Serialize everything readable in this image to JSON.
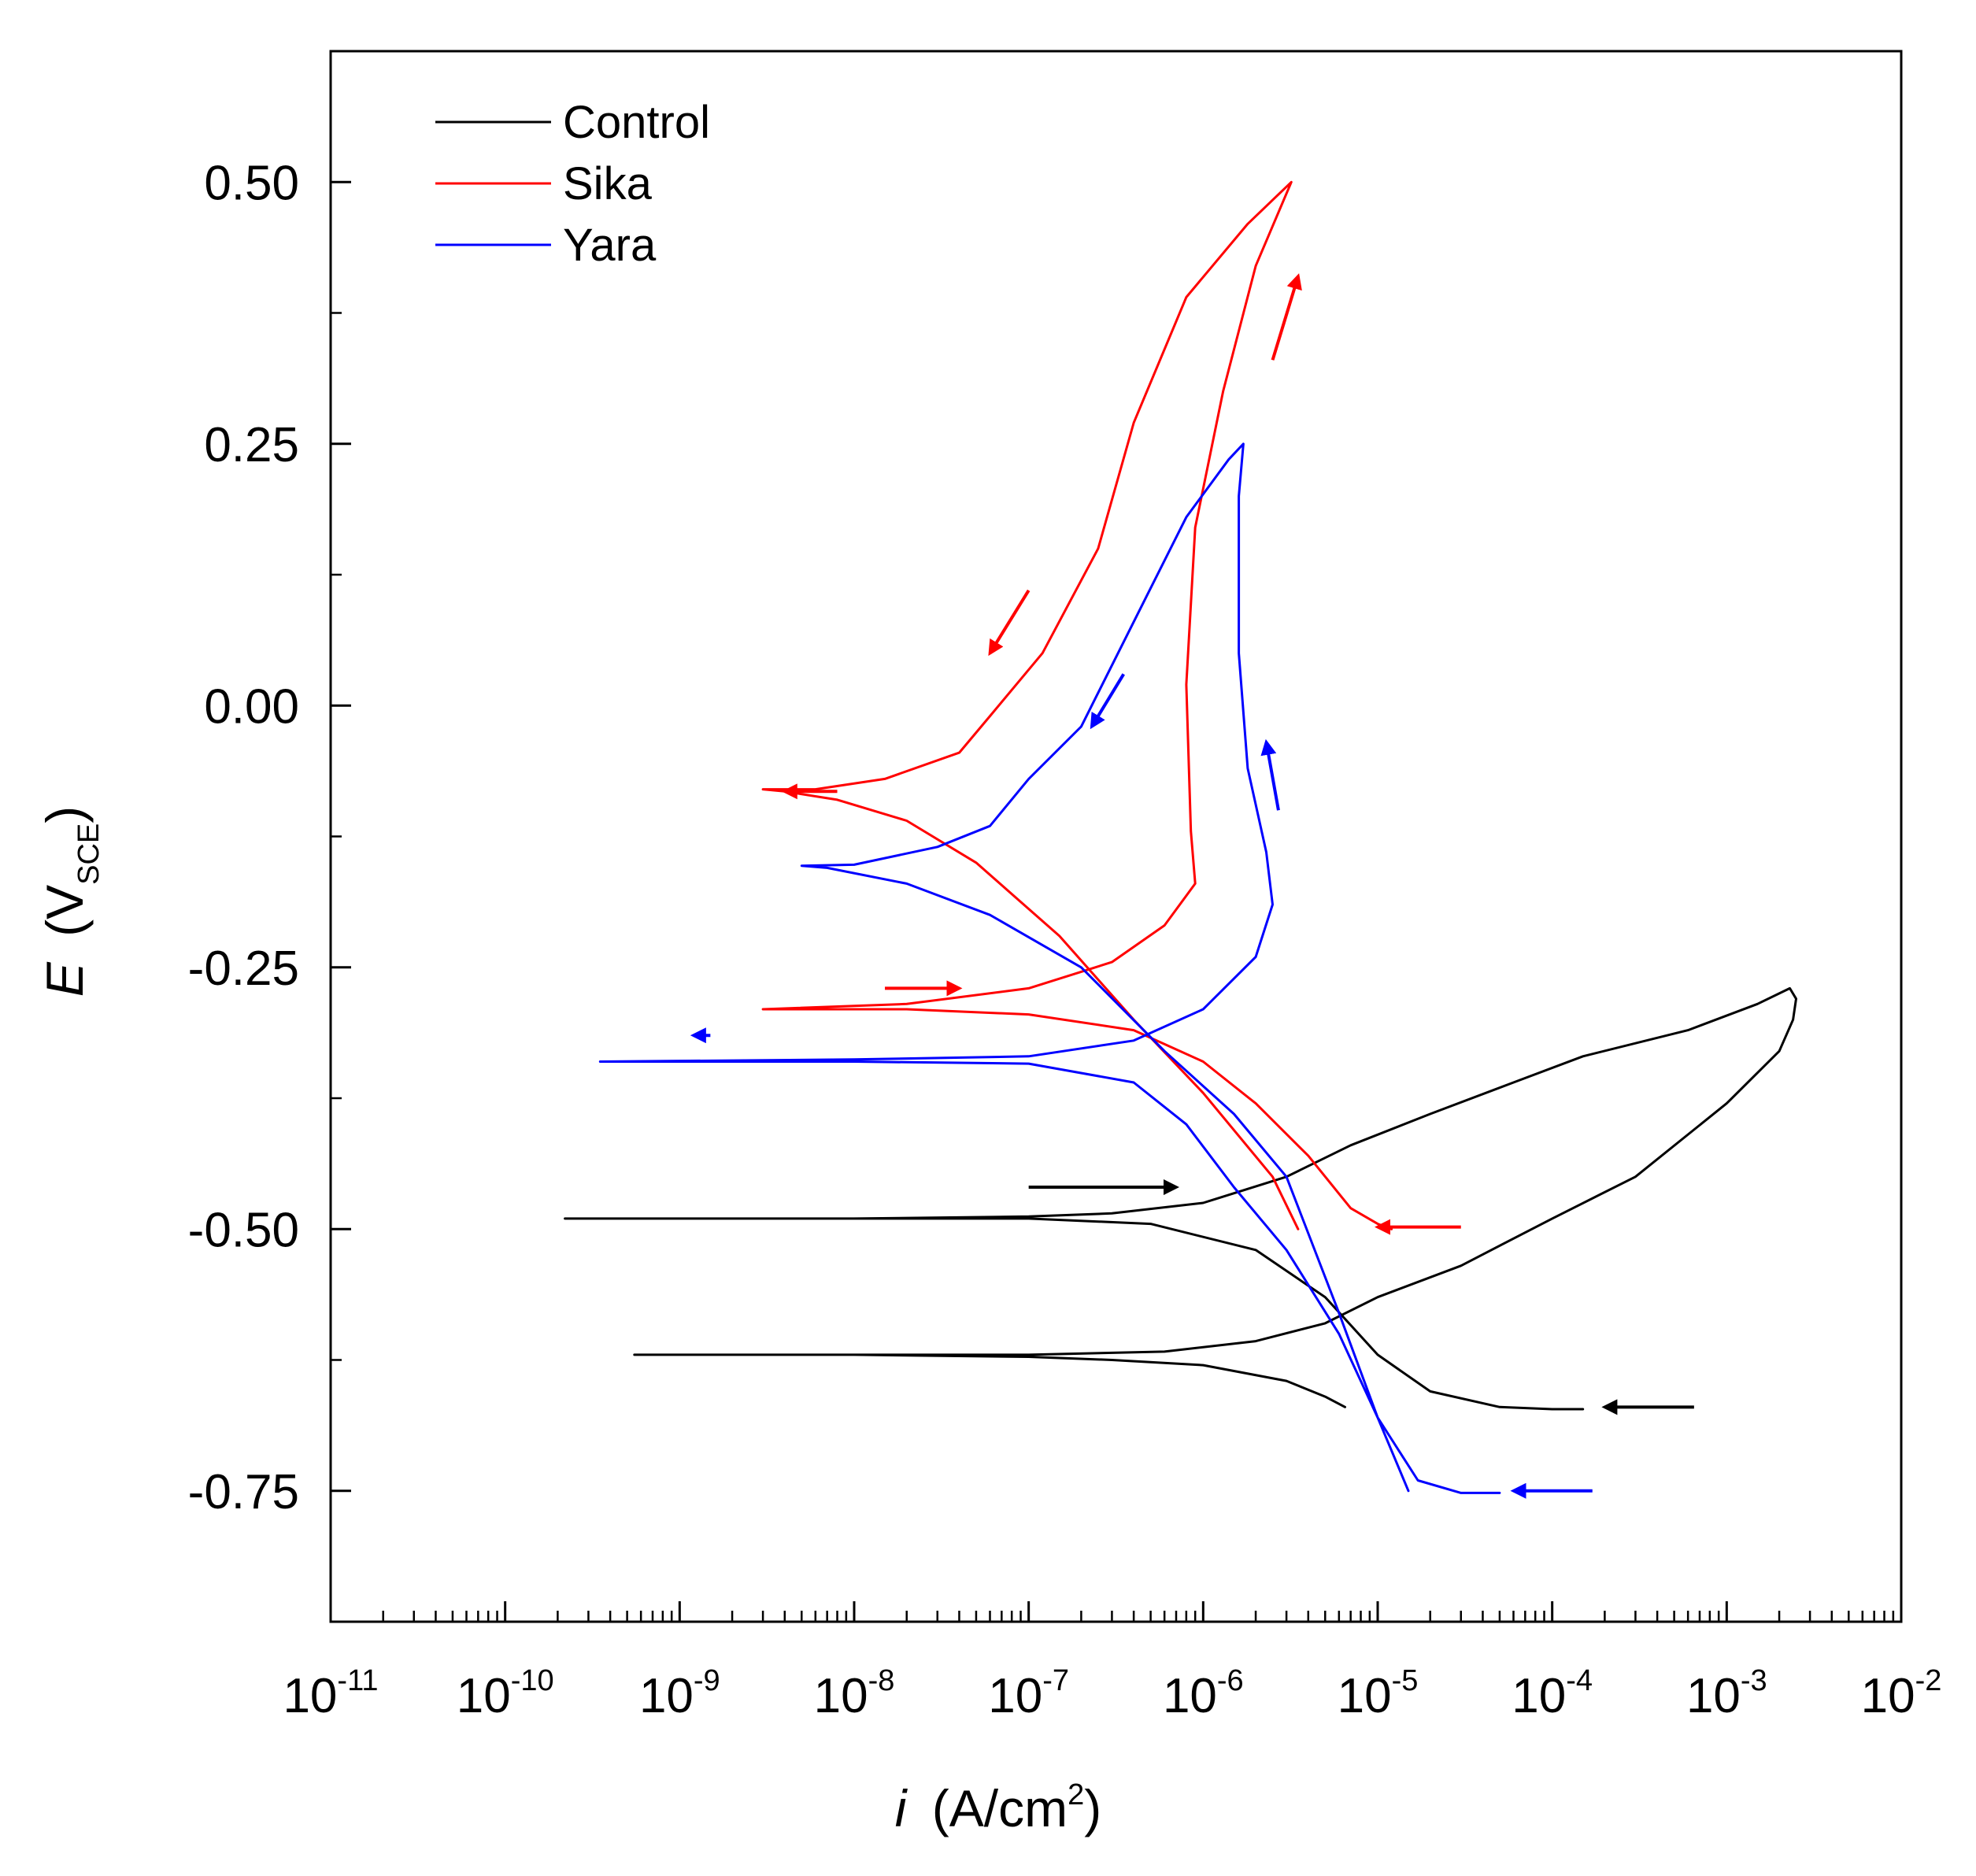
{
  "chart_data": {
    "type": "line",
    "title": "",
    "xlabel": {
      "symbol": "i",
      "text": "(A/cm",
      "sup": "2",
      "close": ")"
    },
    "ylabel": {
      "symbol": "E",
      "open": "(V",
      "sub": "SCE",
      "close": ")"
    },
    "x_scale": "log",
    "xlim": [
      1e-11,
      0.01
    ],
    "ylim": [
      -0.875,
      0.625
    ],
    "x_ticks": [
      {
        "value": 1e-11,
        "base": "10",
        "exp": "-11"
      },
      {
        "value": 1e-10,
        "base": "10",
        "exp": "-10"
      },
      {
        "value": 1e-09,
        "base": "10",
        "exp": "-9"
      },
      {
        "value": 1e-08,
        "base": "10",
        "exp": "-8"
      },
      {
        "value": 1e-07,
        "base": "10",
        "exp": "-7"
      },
      {
        "value": 1e-06,
        "base": "10",
        "exp": "-6"
      },
      {
        "value": 1e-05,
        "base": "10",
        "exp": "-5"
      },
      {
        "value": 0.0001,
        "base": "10",
        "exp": "-4"
      },
      {
        "value": 0.001,
        "base": "10",
        "exp": "-3"
      },
      {
        "value": 0.01,
        "base": "10",
        "exp": "-2"
      }
    ],
    "y_ticks": [
      {
        "value": 0.5,
        "label": "0.50"
      },
      {
        "value": 0.25,
        "label": "0.25"
      },
      {
        "value": 0.0,
        "label": "0.00"
      },
      {
        "value": -0.25,
        "label": "-0.25"
      },
      {
        "value": -0.5,
        "label": "-0.50"
      },
      {
        "value": -0.75,
        "label": "-0.75"
      }
    ],
    "y_minor_ticks": [
      0.375,
      0.125,
      -0.125,
      -0.375,
      -0.625
    ],
    "legend": {
      "position": "top-left"
    },
    "series": [
      {
        "name": "Control",
        "color": "#000000",
        "points": [
          [
            6.5e-06,
            -0.67
          ],
          [
            5e-06,
            -0.66
          ],
          [
            3e-06,
            -0.645
          ],
          [
            1e-06,
            -0.63
          ],
          [
            3e-07,
            -0.625
          ],
          [
            1e-07,
            -0.622
          ],
          [
            1e-08,
            -0.62
          ],
          [
            1e-09,
            -0.62
          ],
          [
            5.5e-10,
            -0.62
          ],
          [
            1e-09,
            -0.62
          ],
          [
            1e-08,
            -0.62
          ],
          [
            1e-07,
            -0.62
          ],
          [
            6e-07,
            -0.617
          ],
          [
            2e-06,
            -0.607
          ],
          [
            5e-06,
            -0.59
          ],
          [
            1e-05,
            -0.565
          ],
          [
            3e-05,
            -0.535
          ],
          [
            0.0001,
            -0.49
          ],
          [
            0.0003,
            -0.45
          ],
          [
            0.001,
            -0.38
          ],
          [
            0.002,
            -0.33
          ],
          [
            0.0024,
            -0.3
          ],
          [
            0.0025,
            -0.28
          ],
          [
            0.0023,
            -0.27
          ],
          [
            0.0015,
            -0.285
          ],
          [
            0.0006,
            -0.31
          ],
          [
            0.00015,
            -0.335
          ],
          [
            6e-05,
            -0.36
          ],
          [
            2e-05,
            -0.39
          ],
          [
            7e-06,
            -0.42
          ],
          [
            3e-06,
            -0.45
          ],
          [
            1e-06,
            -0.475
          ],
          [
            3e-07,
            -0.485
          ],
          [
            1e-07,
            -0.488
          ],
          [
            1e-08,
            -0.49
          ],
          [
            1e-09,
            -0.49
          ],
          [
            2.2e-10,
            -0.49
          ],
          [
            1e-09,
            -0.49
          ],
          [
            1e-08,
            -0.49
          ],
          [
            1e-07,
            -0.49
          ],
          [
            5e-07,
            -0.495
          ],
          [
            2e-06,
            -0.52
          ],
          [
            5e-06,
            -0.565
          ],
          [
            1e-05,
            -0.62
          ],
          [
            2e-05,
            -0.655
          ],
          [
            5e-05,
            -0.67
          ],
          [
            0.0001,
            -0.672
          ],
          [
            0.00015,
            -0.672
          ]
        ]
      },
      {
        "name": "Sika",
        "color": "#ff0000",
        "points": [
          [
            3.5e-06,
            -0.5
          ],
          [
            2.5e-06,
            -0.45
          ],
          [
            1e-06,
            -0.37
          ],
          [
            4e-07,
            -0.3
          ],
          [
            1.5e-07,
            -0.22
          ],
          [
            5e-08,
            -0.15
          ],
          [
            2e-08,
            -0.11
          ],
          [
            8e-09,
            -0.09
          ],
          [
            4e-09,
            -0.082
          ],
          [
            3e-09,
            -0.08
          ],
          [
            6e-09,
            -0.08
          ],
          [
            1.5e-08,
            -0.07
          ],
          [
            4e-08,
            -0.045
          ],
          [
            6e-08,
            -0.01
          ],
          [
            1.2e-07,
            0.05
          ],
          [
            2.5e-07,
            0.15
          ],
          [
            4e-07,
            0.27
          ],
          [
            8e-07,
            0.39
          ],
          [
            1.8e-06,
            0.46
          ],
          [
            3.2e-06,
            0.5
          ],
          [
            2e-06,
            0.42
          ],
          [
            1.3e-06,
            0.3
          ],
          [
            9e-07,
            0.17
          ],
          [
            8e-07,
            0.02
          ],
          [
            8.5e-07,
            -0.12
          ],
          [
            9e-07,
            -0.17
          ],
          [
            6e-07,
            -0.21
          ],
          [
            3e-07,
            -0.245
          ],
          [
            1e-07,
            -0.27
          ],
          [
            2e-08,
            -0.285
          ],
          [
            3e-09,
            -0.29
          ],
          [
            2e-08,
            -0.29
          ],
          [
            1e-07,
            -0.295
          ],
          [
            4e-07,
            -0.31
          ],
          [
            1e-06,
            -0.34
          ],
          [
            2e-06,
            -0.38
          ],
          [
            4e-06,
            -0.43
          ],
          [
            7e-06,
            -0.48
          ],
          [
            1e-05,
            -0.495
          ],
          [
            1.2e-05,
            -0.5
          ]
        ]
      },
      {
        "name": "Yara",
        "color": "#0000ff",
        "points": [
          [
            1.5e-05,
            -0.75
          ],
          [
            1e-05,
            -0.68
          ],
          [
            6e-06,
            -0.58
          ],
          [
            3e-06,
            -0.45
          ],
          [
            1.5e-06,
            -0.39
          ],
          [
            6e-07,
            -0.33
          ],
          [
            2e-07,
            -0.25
          ],
          [
            6e-08,
            -0.2
          ],
          [
            2e-08,
            -0.17
          ],
          [
            7e-09,
            -0.155
          ],
          [
            5e-09,
            -0.153
          ],
          [
            1e-08,
            -0.152
          ],
          [
            3e-08,
            -0.135
          ],
          [
            6e-08,
            -0.115
          ],
          [
            1e-07,
            -0.07
          ],
          [
            2e-07,
            -0.02
          ],
          [
            4e-07,
            0.08
          ],
          [
            8e-07,
            0.18
          ],
          [
            1.4e-06,
            0.235
          ],
          [
            1.7e-06,
            0.25
          ],
          [
            1.6e-06,
            0.2
          ],
          [
            1.6e-06,
            0.05
          ],
          [
            1.8e-06,
            -0.06
          ],
          [
            2.3e-06,
            -0.14
          ],
          [
            2.5e-06,
            -0.19
          ],
          [
            2e-06,
            -0.24
          ],
          [
            1e-06,
            -0.29
          ],
          [
            4e-07,
            -0.32
          ],
          [
            1e-07,
            -0.335
          ],
          [
            1e-08,
            -0.338
          ],
          [
            3.5e-10,
            -0.34
          ],
          [
            1e-09,
            -0.34
          ],
          [
            1e-08,
            -0.34
          ],
          [
            1e-07,
            -0.342
          ],
          [
            4e-07,
            -0.36
          ],
          [
            8e-07,
            -0.4
          ],
          [
            1.5e-06,
            -0.46
          ],
          [
            3e-06,
            -0.52
          ],
          [
            6e-06,
            -0.6
          ],
          [
            1e-05,
            -0.68
          ],
          [
            1.7e-05,
            -0.74
          ],
          [
            3e-05,
            -0.752
          ],
          [
            5e-05,
            -0.752
          ]
        ]
      }
    ],
    "arrows": [
      {
        "series": "Control",
        "color": "#000000",
        "from": [
          1e-07,
          -0.46
        ],
        "to": [
          7e-07,
          -0.46
        ]
      },
      {
        "series": "Control",
        "color": "#000000",
        "from": [
          0.00065,
          -0.67
        ],
        "to": [
          0.0002,
          -0.67
        ]
      },
      {
        "series": "Sika",
        "color": "#ff0000",
        "from": [
          3e-05,
          -0.498
        ],
        "to": [
          1e-05,
          -0.498
        ]
      },
      {
        "series": "Sika",
        "color": "#ff0000",
        "from": [
          1.5e-08,
          -0.27
        ],
        "to": [
          4e-08,
          -0.27
        ]
      },
      {
        "series": "Sika",
        "color": "#ff0000",
        "from": [
          2.5e-06,
          0.33
        ],
        "to": [
          3.5e-06,
          0.41
        ]
      },
      {
        "series": "Sika",
        "color": "#ff0000",
        "from": [
          1e-07,
          0.11
        ],
        "to": [
          6e-08,
          0.05
        ]
      },
      {
        "series": "Sika",
        "color": "#ff0000",
        "from": [
          8e-09,
          -0.082
        ],
        "to": [
          4e-09,
          -0.082
        ]
      },
      {
        "series": "Yara",
        "color": "#0000ff",
        "from": [
          1.5e-09,
          -0.315
        ],
        "to": [
          1.2e-09,
          -0.315
        ]
      },
      {
        "series": "Yara",
        "color": "#0000ff",
        "from": [
          3.5e-07,
          0.03
        ],
        "to": [
          2.3e-07,
          -0.02
        ]
      },
      {
        "series": "Yara",
        "color": "#0000ff",
        "from": [
          2.7e-06,
          -0.1
        ],
        "to": [
          2.3e-06,
          -0.035
        ]
      },
      {
        "series": "Yara",
        "color": "#0000ff",
        "from": [
          0.00017,
          -0.75
        ],
        "to": [
          6e-05,
          -0.75
        ]
      }
    ]
  }
}
